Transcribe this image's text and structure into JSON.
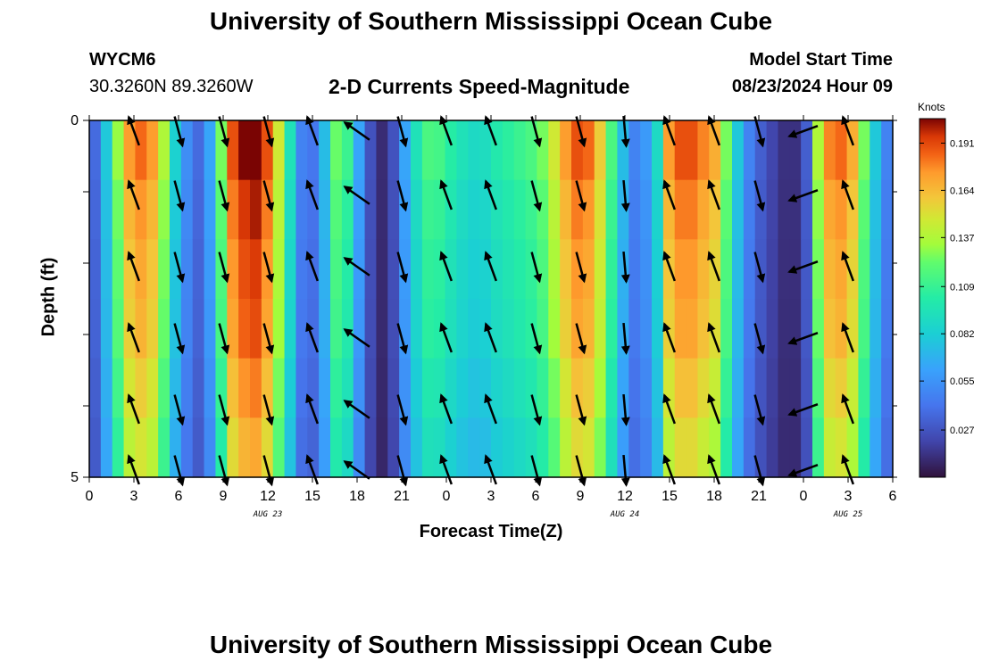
{
  "header": {
    "title": "University of Southern Mississippi Ocean Cube",
    "station": "WYCM6",
    "coordinates": "30.3260N  89.3260W",
    "subtitle": "2-D Currents Speed-Magnitude",
    "start_label": "Model Start Time",
    "start_value": "08/23/2024 Hour 09"
  },
  "footer": {
    "title": "University of Southern Mississippi Ocean Cube"
  },
  "chart_data": {
    "type": "heatmap",
    "title": "2-D Currents Speed-Magnitude",
    "xlabel": "Forecast Time(Z)",
    "ylabel": "Depth (ft)",
    "x_tick_labels": [
      "0",
      "3",
      "6",
      "9",
      "12",
      "15",
      "18",
      "21",
      "0",
      "3",
      "6",
      "9",
      "12",
      "15",
      "18",
      "21",
      "0",
      "3",
      "6"
    ],
    "date_labels": [
      {
        "label": "AUG 23",
        "tick_index": 4
      },
      {
        "label": "AUG 24",
        "tick_index": 12
      },
      {
        "label": "AUG 25",
        "tick_index": 17
      }
    ],
    "x_range_hours": [
      0,
      54
    ],
    "y_tick_labels": [
      "0",
      "5"
    ],
    "ylim": [
      0,
      5
    ],
    "colorbar": {
      "title": "Knots",
      "ticks": [
        "0.191",
        "0.164",
        "0.137",
        "0.109",
        "0.082",
        "0.055",
        "0.027"
      ],
      "range": [
        0,
        0.205
      ]
    },
    "speed_columns_knots": [
      0.035,
      0.075,
      0.125,
      0.165,
      0.175,
      0.165,
      0.13,
      0.08,
      0.05,
      0.035,
      0.06,
      0.12,
      0.18,
      0.195,
      0.2,
      0.18,
      0.14,
      0.09,
      0.045,
      0.04,
      0.07,
      0.118,
      0.105,
      0.06,
      0.025,
      0.01,
      0.025,
      0.06,
      0.09,
      0.11,
      0.108,
      0.098,
      0.09,
      0.085,
      0.087,
      0.095,
      0.1,
      0.105,
      0.11,
      0.12,
      0.14,
      0.165,
      0.18,
      0.175,
      0.15,
      0.11,
      0.07,
      0.045,
      0.055,
      0.085,
      0.165,
      0.18,
      0.18,
      0.17,
      0.16,
      0.12,
      0.075,
      0.045,
      0.03,
      0.02,
      0.012,
      0.012,
      0.03,
      0.13,
      0.17,
      0.175,
      0.16,
      0.12,
      0.075,
      0.045
    ],
    "depth_row_factors": [
      1.05,
      1.0,
      0.97,
      0.95,
      0.9,
      0.85
    ],
    "vector_times_hours": [
      3,
      6,
      9,
      12,
      15,
      18,
      21,
      24,
      27,
      30,
      33,
      36,
      39,
      42,
      45,
      48,
      51
    ],
    "vector_angles_deg": [
      -20,
      165,
      165,
      165,
      -20,
      -55,
      165,
      -20,
      -20,
      165,
      165,
      175,
      -20,
      -20,
      165,
      -110,
      -20
    ],
    "vector_depths": [
      0.15,
      1.05,
      2.05,
      3.05,
      4.05,
      4.9
    ]
  }
}
